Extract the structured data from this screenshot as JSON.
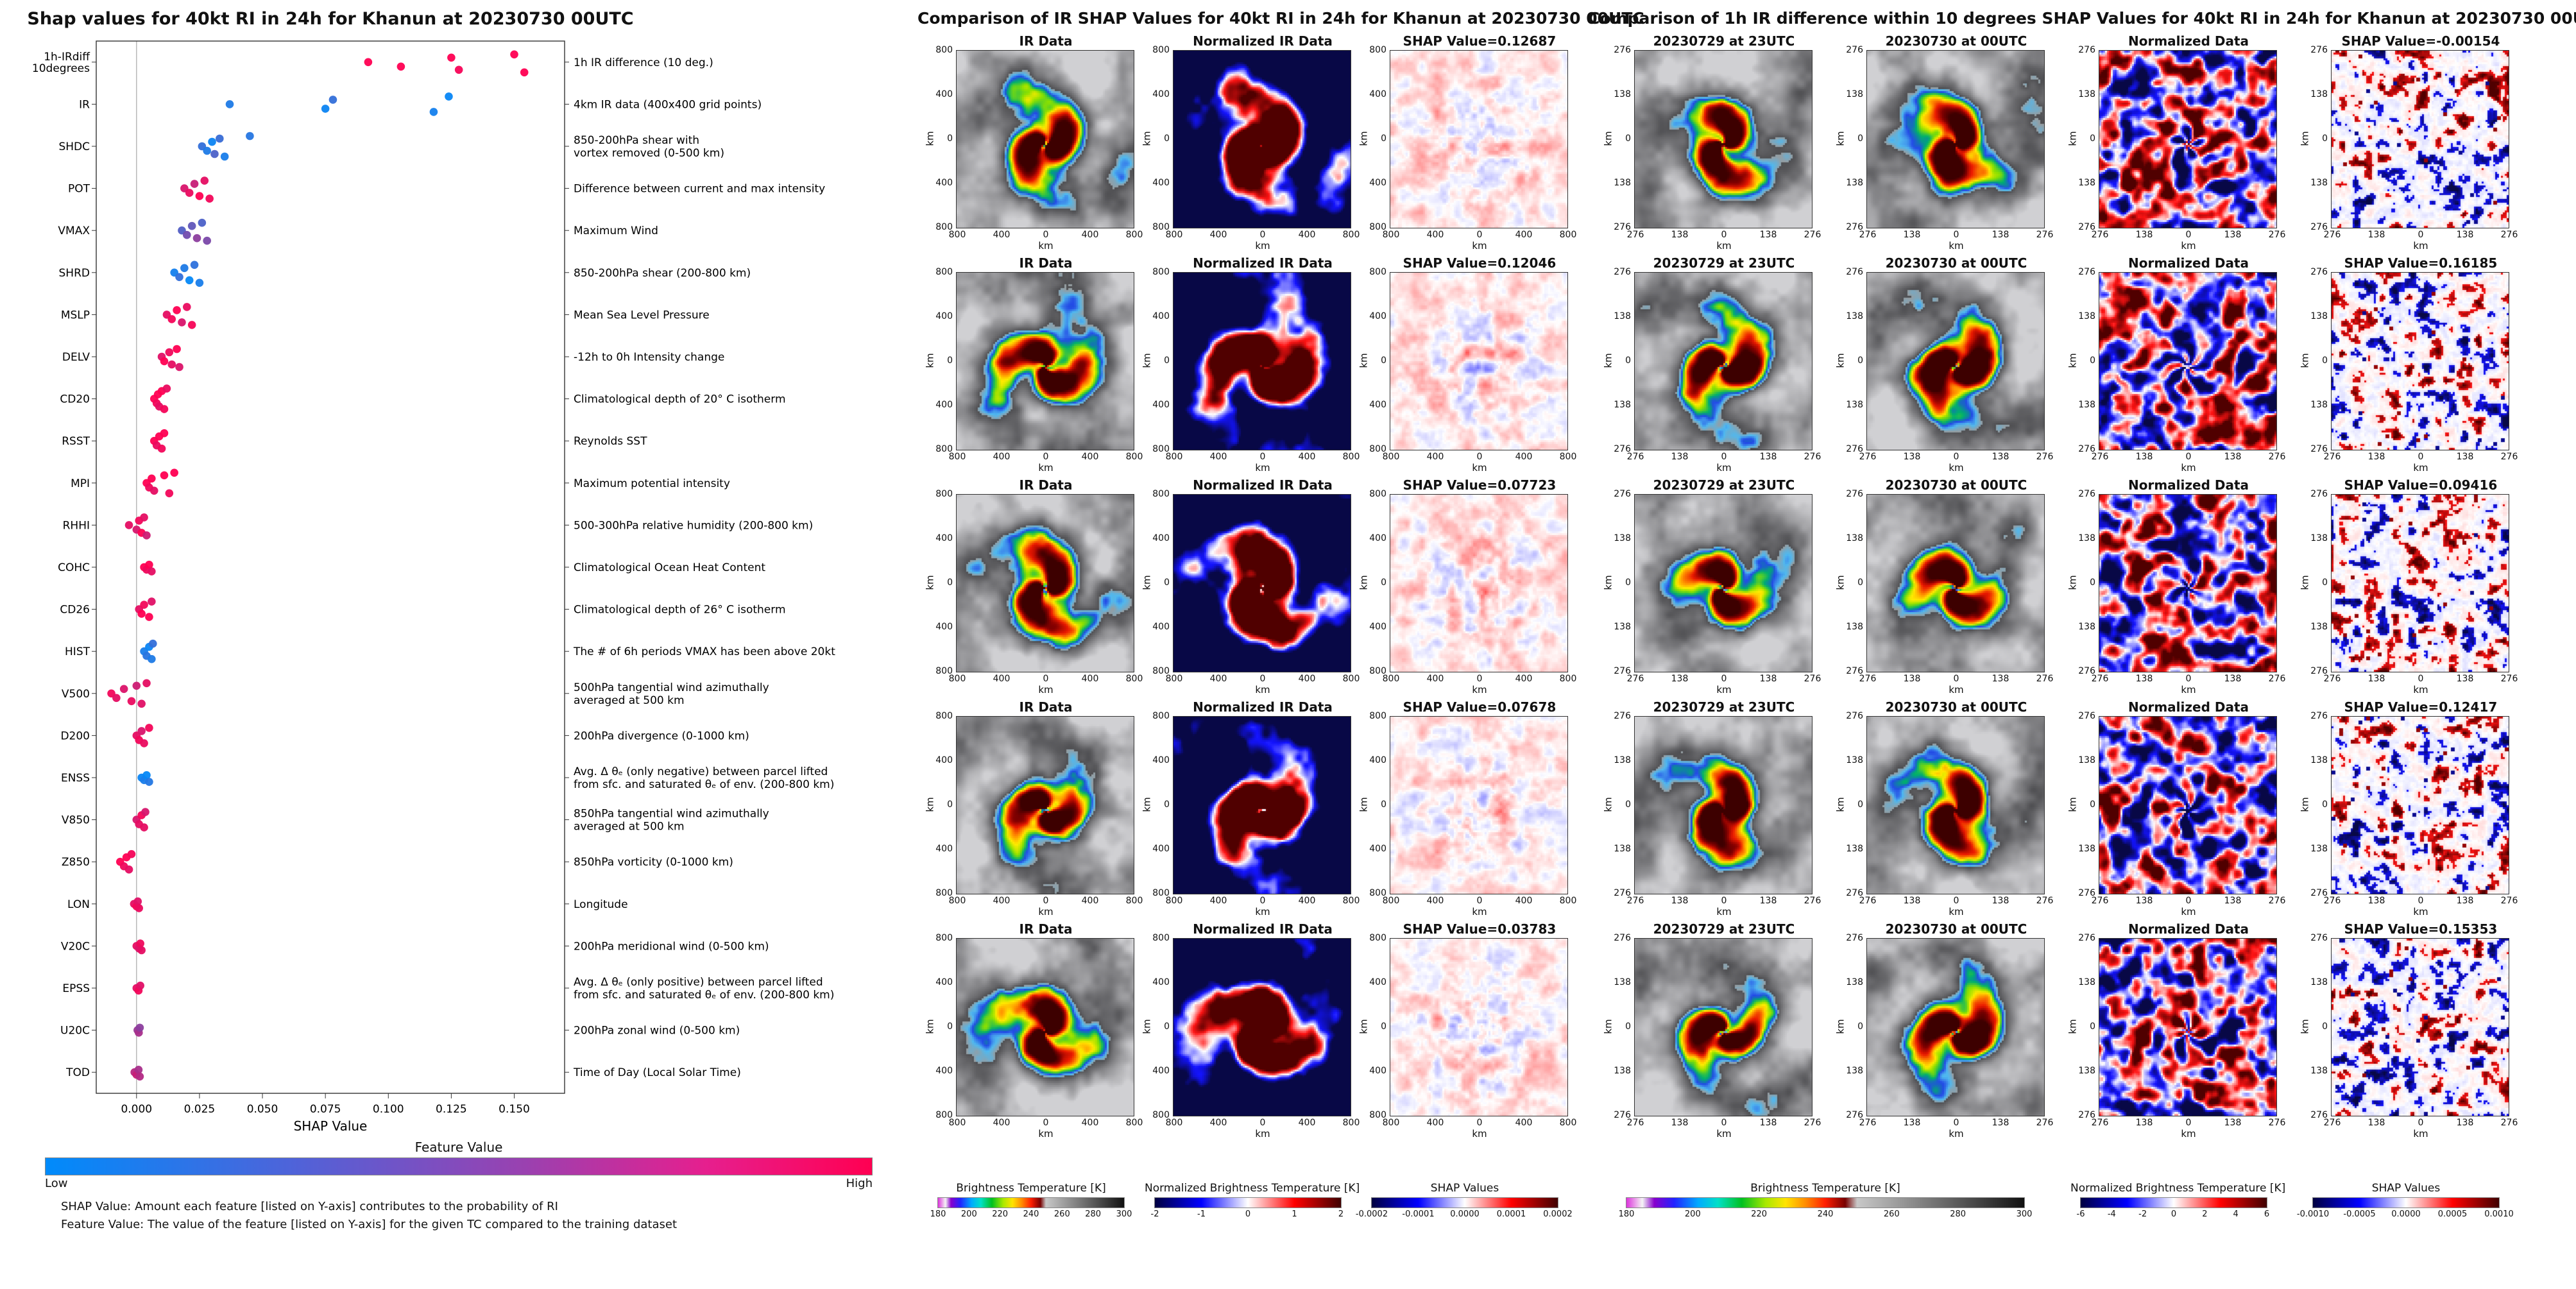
{
  "chart_data": [
    {
      "type": "scatter",
      "subtype": "shap-beeswarm",
      "title": "Shap values for 40kt RI in 24h for Khanun at 20230730 00UTC",
      "xlabel": "SHAP Value",
      "xlim": [
        -0.016,
        0.17
      ],
      "x_tick_values": [
        0,
        0.025,
        0.05,
        0.075,
        0.1,
        0.125,
        0.15
      ],
      "x_tick_labels": [
        "0.000",
        "0.025",
        "0.050",
        "0.075",
        "0.100",
        "0.125",
        "0.150"
      ],
      "legend_position": "bottom",
      "grid": false,
      "colorbar": {
        "title": "Feature Value",
        "low_label": "Low",
        "high_label": "High",
        "low_color": "#008bfb",
        "high_color": "#ff0052"
      },
      "captions": [
        "SHAP Value: Amount each feature [listed on Y-axis] contributes to the probability of RI",
        "Feature Value: The value of the feature [listed on Y-axis] for the given TC compared to the training dataset"
      ],
      "features": [
        {
          "name": "1h-IRdiff\n10degrees",
          "desc": "1h IR difference (10 deg.)",
          "points": [
            [
              0.092,
              1
            ],
            [
              0.105,
              1
            ],
            [
              0.125,
              1
            ],
            [
              0.128,
              0.97
            ],
            [
              0.15,
              1
            ],
            [
              0.154,
              1
            ]
          ]
        },
        {
          "name": "IR",
          "desc": "4km IR data (400x400 grid points)",
          "points": [
            [
              0.037,
              0.12
            ],
            [
              0.075,
              0.05
            ],
            [
              0.078,
              0.2
            ],
            [
              0.118,
              0.08
            ],
            [
              0.124,
              0.03
            ]
          ]
        },
        {
          "name": "SHDC",
          "desc": "850-200hPa shear with\nvortex removed (0-500 km)",
          "points": [
            [
              0.026,
              0.2
            ],
            [
              0.028,
              0.12
            ],
            [
              0.03,
              0.05
            ],
            [
              0.031,
              0.3
            ],
            [
              0.033,
              0.22
            ],
            [
              0.035,
              0.1
            ],
            [
              0.045,
              0.15
            ]
          ]
        },
        {
          "name": "POT",
          "desc": "Difference between current and max intensity",
          "points": [
            [
              0.019,
              0.85
            ],
            [
              0.021,
              0.92
            ],
            [
              0.023,
              0.78
            ],
            [
              0.025,
              1
            ],
            [
              0.027,
              0.9
            ],
            [
              0.029,
              0.95
            ]
          ]
        },
        {
          "name": "VMAX",
          "desc": "Maximum Wind",
          "points": [
            [
              0.018,
              0.32
            ],
            [
              0.02,
              0.45
            ],
            [
              0.022,
              0.38
            ],
            [
              0.024,
              0.55
            ],
            [
              0.026,
              0.3
            ],
            [
              0.028,
              0.48
            ]
          ]
        },
        {
          "name": "SHRD",
          "desc": "850-200hPa shear (200-800 km)",
          "points": [
            [
              0.015,
              0.08
            ],
            [
              0.017,
              0.2
            ],
            [
              0.019,
              0.12
            ],
            [
              0.021,
              0.02
            ],
            [
              0.023,
              0.18
            ],
            [
              0.025,
              0.1
            ]
          ]
        },
        {
          "name": "MSLP",
          "desc": "Mean Sea Level Pressure",
          "points": [
            [
              0.012,
              0.9
            ],
            [
              0.014,
              0.96
            ],
            [
              0.016,
              1
            ],
            [
              0.018,
              0.85
            ],
            [
              0.02,
              0.92
            ],
            [
              0.022,
              0.97
            ]
          ]
        },
        {
          "name": "DELV",
          "desc": "-12h to 0h Intensity change",
          "points": [
            [
              0.01,
              0.88
            ],
            [
              0.011,
              1
            ],
            [
              0.013,
              0.94
            ],
            [
              0.014,
              0.9
            ],
            [
              0.016,
              1
            ],
            [
              0.017,
              0.86
            ]
          ]
        },
        {
          "name": "CD20",
          "desc": "Climatological depth of 20° C isotherm",
          "points": [
            [
              0.007,
              1
            ],
            [
              0.008,
              0.95
            ],
            [
              0.0085,
              1
            ],
            [
              0.009,
              0.9
            ],
            [
              0.01,
              1
            ],
            [
              0.011,
              0.96
            ],
            [
              0.012,
              0.92
            ]
          ]
        },
        {
          "name": "RSST",
          "desc": "Reynolds SST",
          "points": [
            [
              0.007,
              1
            ],
            [
              0.008,
              0.92
            ],
            [
              0.009,
              1
            ],
            [
              0.01,
              0.95
            ],
            [
              0.011,
              1
            ]
          ]
        },
        {
          "name": "MPI",
          "desc": "Maximum potential intensity",
          "points": [
            [
              0.004,
              1
            ],
            [
              0.005,
              0.94
            ],
            [
              0.006,
              1
            ],
            [
              0.007,
              0.9
            ],
            [
              0.011,
              1
            ],
            [
              0.013,
              0.95
            ],
            [
              0.015,
              1
            ]
          ]
        },
        {
          "name": "RHHI",
          "desc": "500-300hPa relative humidity (200-800 km)",
          "points": [
            [
              -0.003,
              0.9
            ],
            [
              0,
              0.84
            ],
            [
              0.001,
              0.95
            ],
            [
              0.002,
              1
            ],
            [
              0.003,
              0.9
            ],
            [
              0.004,
              0.8
            ]
          ]
        },
        {
          "name": "COHC",
          "desc": "Climatological Ocean Heat Content",
          "points": [
            [
              0.003,
              1
            ],
            [
              0.004,
              0.94
            ],
            [
              0.005,
              1
            ],
            [
              0.006,
              0.9
            ]
          ]
        },
        {
          "name": "CD26",
          "desc": "Climatological depth of 26° C isotherm",
          "points": [
            [
              0.001,
              0.9
            ],
            [
              0.002,
              1
            ],
            [
              0.003,
              0.95
            ],
            [
              0.005,
              1
            ],
            [
              0.006,
              0.88
            ]
          ]
        },
        {
          "name": "HIST",
          "desc": "The # of 6h periods VMAX has been above 20kt",
          "points": [
            [
              0.003,
              0.1
            ],
            [
              0.004,
              0.16
            ],
            [
              0.005,
              0.04
            ],
            [
              0.006,
              0.12
            ],
            [
              0.0065,
              0.2
            ]
          ]
        },
        {
          "name": "V500",
          "desc": "500hPa tangential wind azimuthally\naveraged at 500 km",
          "points": [
            [
              -0.01,
              0.95
            ],
            [
              -0.008,
              0.9
            ],
            [
              -0.005,
              0.86
            ],
            [
              -0.002,
              0.92
            ],
            [
              0,
              0.8
            ],
            [
              0.002,
              0.88
            ],
            [
              0.004,
              0.9
            ]
          ]
        },
        {
          "name": "D200",
          "desc": "200hPa divergence (0-1000 km)",
          "points": [
            [
              0,
              0.9
            ],
            [
              0.001,
              0.95
            ],
            [
              0.002,
              0.85
            ],
            [
              0.003,
              0.92
            ],
            [
              0.005,
              0.96
            ]
          ]
        },
        {
          "name": "ENSS",
          "desc": "Avg. Δ θₑ (only negative) between parcel lifted\nfrom sfc. and saturated θₑ of env. (200-800 km)",
          "points": [
            [
              0.002,
              0.04
            ],
            [
              0.003,
              0.1
            ],
            [
              0.004,
              0.02
            ],
            [
              0.005,
              0.14
            ]
          ]
        },
        {
          "name": "V850",
          "desc": "850hPa tangential wind azimuthally\naveraged at 500 km",
          "points": [
            [
              0,
              0.85
            ],
            [
              0.001,
              0.9
            ],
            [
              0.002,
              0.96
            ],
            [
              0.003,
              0.9
            ],
            [
              0.0035,
              0.84
            ]
          ]
        },
        {
          "name": "Z850",
          "desc": "850hPa vorticity (0-1000 km)",
          "points": [
            [
              -0.0065,
              1
            ],
            [
              -0.005,
              0.94
            ],
            [
              -0.004,
              1
            ],
            [
              -0.003,
              0.9
            ],
            [
              -0.002,
              0.96
            ]
          ]
        },
        {
          "name": "LON",
          "desc": "Longitude",
          "points": [
            [
              -0.001,
              0.9
            ],
            [
              0,
              0.96
            ],
            [
              0.0005,
              0.88
            ],
            [
              0.001,
              0.92
            ]
          ]
        },
        {
          "name": "V20C",
          "desc": "200hPa meridional wind (0-500 km)",
          "points": [
            [
              0,
              0.9
            ],
            [
              0.001,
              0.86
            ],
            [
              0.0015,
              0.94
            ],
            [
              0.002,
              0.9
            ]
          ]
        },
        {
          "name": "EPSS",
          "desc": "Avg. Δ θₑ (only positive) between parcel lifted\nfrom sfc. and saturated θₑ of env. (200-800 km)",
          "points": [
            [
              0,
              0.9
            ],
            [
              0.0008,
              0.95
            ],
            [
              0.0015,
              0.88
            ]
          ]
        },
        {
          "name": "U20C",
          "desc": "200hPa zonal wind (0-500 km)",
          "points": [
            [
              0.0004,
              0.6
            ],
            [
              0.0009,
              0.66
            ],
            [
              0.0013,
              0.55
            ]
          ]
        },
        {
          "name": "TOD",
          "desc": "Time of Day (Local Solar Time)",
          "points": [
            [
              -0.0008,
              0.72
            ],
            [
              0,
              0.78
            ],
            [
              0.0008,
              0.66
            ],
            [
              0.0013,
              0.7
            ]
          ]
        }
      ]
    },
    {
      "type": "heatmap",
      "title": "Comparison of IR SHAP Values for 40kt RI in 24h for Khanun at 20230730 00UTC",
      "col_titles": [
        "IR Data",
        "Normalized IR Data"
      ],
      "shap_labels": [
        "SHAP Value=0.12687",
        "SHAP Value=0.12046",
        "SHAP Value=0.07723",
        "SHAP Value=0.07678",
        "SHAP Value=0.03783"
      ],
      "shap_values": [
        0.12687,
        0.12046,
        0.07723,
        0.07678,
        0.03783
      ],
      "axis_tick_labels": [
        "800",
        "400",
        "0",
        "400",
        "800"
      ],
      "axis_unit": "km",
      "colorbars": [
        {
          "title": "Brightness Temperature [K]",
          "ticks": [
            "180",
            "200",
            "220",
            "240",
            "260",
            "280",
            "300"
          ],
          "cmap": "irbt"
        },
        {
          "title": "Normalized Brightness Temperature [K]",
          "ticks": [
            "-2",
            "-1",
            "0",
            "1",
            "2"
          ],
          "cmap": "seismic"
        },
        {
          "title": "SHAP Values",
          "ticks": [
            "-0.0002",
            "-0.0001",
            "0.0000",
            "0.0001",
            "0.0002"
          ],
          "cmap": "seismic"
        }
      ]
    },
    {
      "type": "heatmap",
      "title": "Comparison of 1h IR difference within 10 degrees SHAP Values for 40kt RI in 24h for Khanun at 20230730 00UTC",
      "col_titles": [
        "20230729 at 23UTC",
        "20230730 at 00UTC",
        "Normalized Data"
      ],
      "shap_labels": [
        "SHAP Value=-0.00154",
        "SHAP Value=0.16185",
        "SHAP Value=0.09416",
        "SHAP Value=0.12417",
        "SHAP Value=0.15353"
      ],
      "shap_values": [
        -0.00154,
        0.16185,
        0.09416,
        0.12417,
        0.15353
      ],
      "axis_tick_labels": [
        "276",
        "138",
        "0",
        "138",
        "276"
      ],
      "axis_unit": "km",
      "colorbars": [
        {
          "title": "Brightness Temperature [K]",
          "ticks": [
            "180",
            "200",
            "220",
            "240",
            "260",
            "280",
            "300"
          ],
          "cmap": "irbt"
        },
        {
          "title": "Normalized Brightness Temperature [K]",
          "ticks": [
            "-6",
            "-4",
            "-2",
            "0",
            "2",
            "4",
            "6"
          ],
          "cmap": "seismic"
        },
        {
          "title": "SHAP Values",
          "ticks": [
            "-0.0010",
            "-0.0005",
            "0.0000",
            "0.0005",
            "0.0010"
          ],
          "cmap": "seismic"
        }
      ]
    }
  ]
}
